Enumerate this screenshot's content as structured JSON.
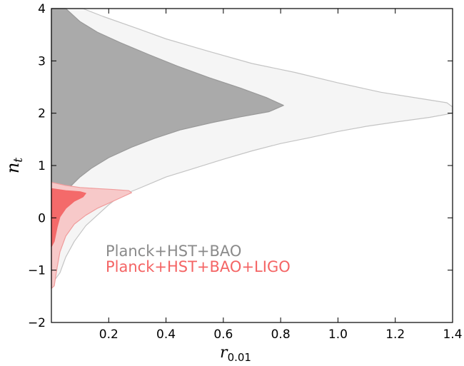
{
  "chart_data": {
    "type": "area",
    "xlabel": "r",
    "xlabel_sub": "0.01",
    "ylabel": "n",
    "ylabel_sub": "t",
    "xlim": [
      0.0,
      1.4
    ],
    "ylim": [
      -2,
      4
    ],
    "xticks": [
      0.2,
      0.4,
      0.6,
      0.8,
      1.0,
      1.2,
      1.4
    ],
    "yticks": [
      -2,
      -1,
      0,
      1,
      2,
      3,
      4
    ],
    "xtick_labels": [
      "0.2",
      "0.4",
      "0.6",
      "0.8",
      "1.0",
      "1.2",
      "1.4"
    ],
    "ytick_labels": [
      "−2",
      "−1",
      "0",
      "1",
      "2",
      "3",
      "4"
    ],
    "grid": false,
    "legend_position": "lower-center",
    "series": [
      {
        "name": "Planck+HST+BAO",
        "label": "Planck+HST+BAO",
        "color": "#8a8a8a",
        "regions": [
          {
            "level": "95%",
            "fill": "#f5f5f5",
            "stroke": "#c4c4c4",
            "points": [
              [
                0.11,
                4.0
              ],
              [
                0.18,
                3.85
              ],
              [
                0.3,
                3.62
              ],
              [
                0.4,
                3.42
              ],
              [
                0.55,
                3.18
              ],
              [
                0.7,
                2.95
              ],
              [
                0.85,
                2.78
              ],
              [
                1.0,
                2.58
              ],
              [
                1.15,
                2.4
              ],
              [
                1.3,
                2.27
              ],
              [
                1.38,
                2.2
              ],
              [
                1.4,
                2.12
              ],
              [
                1.4,
                2.0
              ],
              [
                1.32,
                1.92
              ],
              [
                1.2,
                1.83
              ],
              [
                1.1,
                1.75
              ],
              [
                1.0,
                1.65
              ],
              [
                0.9,
                1.53
              ],
              [
                0.8,
                1.42
              ],
              [
                0.7,
                1.28
              ],
              [
                0.6,
                1.12
              ],
              [
                0.5,
                0.95
              ],
              [
                0.4,
                0.78
              ],
              [
                0.3,
                0.55
              ],
              [
                0.24,
                0.42
              ],
              [
                0.2,
                0.25
              ],
              [
                0.16,
                0.05
              ],
              [
                0.12,
                -0.15
              ],
              [
                0.08,
                -0.45
              ],
              [
                0.05,
                -0.75
              ],
              [
                0.03,
                -1.05
              ],
              [
                0.01,
                -1.2
              ],
              [
                0.0,
                -1.2
              ],
              [
                0.0,
                4.0
              ]
            ]
          },
          {
            "level": "68%",
            "fill": "#aaaaaa",
            "stroke": "#999999",
            "points": [
              [
                0.0,
                4.0
              ],
              [
                0.05,
                4.0
              ],
              [
                0.1,
                3.75
              ],
              [
                0.16,
                3.55
              ],
              [
                0.24,
                3.35
              ],
              [
                0.34,
                3.12
              ],
              [
                0.44,
                2.9
              ],
              [
                0.55,
                2.68
              ],
              [
                0.66,
                2.48
              ],
              [
                0.75,
                2.3
              ],
              [
                0.81,
                2.15
              ],
              [
                0.76,
                2.03
              ],
              [
                0.66,
                1.93
              ],
              [
                0.56,
                1.82
              ],
              [
                0.45,
                1.68
              ],
              [
                0.36,
                1.52
              ],
              [
                0.28,
                1.35
              ],
              [
                0.2,
                1.15
              ],
              [
                0.14,
                0.95
              ],
              [
                0.1,
                0.78
              ],
              [
                0.07,
                0.62
              ],
              [
                0.04,
                0.58
              ],
              [
                0.0,
                0.58
              ]
            ]
          }
        ]
      },
      {
        "name": "Planck+HST+BAO+LIGO",
        "label": "Planck+HST+BAO+LIGO",
        "color": "#f46464",
        "regions": [
          {
            "level": "95%",
            "fill": "#f7c9c9",
            "stroke": "#f09c9c",
            "points": [
              [
                0.0,
                0.68
              ],
              [
                0.05,
                0.62
              ],
              [
                0.1,
                0.58
              ],
              [
                0.16,
                0.56
              ],
              [
                0.22,
                0.54
              ],
              [
                0.27,
                0.52
              ],
              [
                0.28,
                0.48
              ],
              [
                0.24,
                0.38
              ],
              [
                0.2,
                0.28
              ],
              [
                0.16,
                0.18
              ],
              [
                0.12,
                0.05
              ],
              [
                0.08,
                -0.12
              ],
              [
                0.05,
                -0.35
              ],
              [
                0.03,
                -0.65
              ],
              [
                0.02,
                -0.95
              ],
              [
                0.01,
                -1.3
              ],
              [
                0.0,
                -1.35
              ]
            ]
          },
          {
            "level": "68%",
            "fill": "#f46a6a",
            "stroke": "#f46a6a",
            "points": [
              [
                0.0,
                0.56
              ],
              [
                0.05,
                0.52
              ],
              [
                0.1,
                0.5
              ],
              [
                0.12,
                0.47
              ],
              [
                0.11,
                0.4
              ],
              [
                0.08,
                0.32
              ],
              [
                0.05,
                0.18
              ],
              [
                0.03,
                0.02
              ],
              [
                0.02,
                -0.18
              ],
              [
                0.01,
                -0.45
              ],
              [
                0.0,
                -0.55
              ]
            ]
          }
        ]
      }
    ]
  }
}
